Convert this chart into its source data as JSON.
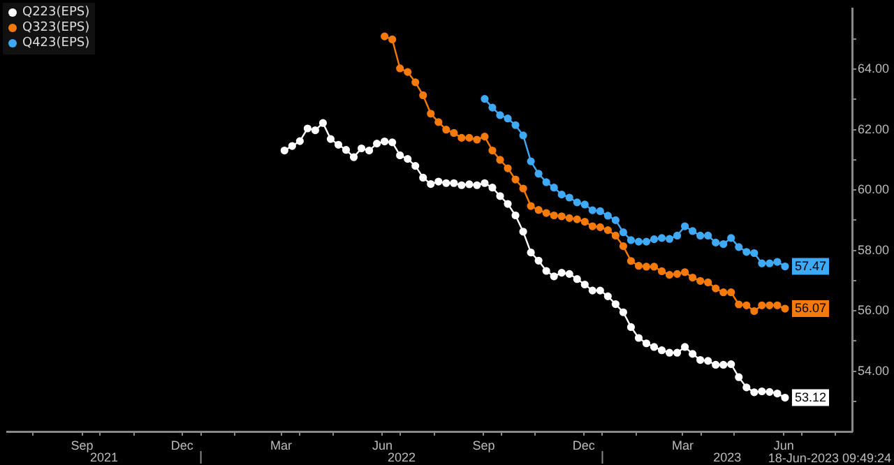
{
  "chart_data": {
    "type": "line",
    "marker": "circle",
    "legend": "top left",
    "x": [
      "2022-03-18",
      "2022-03-25",
      "2022-04-01",
      "2022-04-08",
      "2022-04-15",
      "2022-04-22",
      "2022-04-29",
      "2022-05-06",
      "2022-05-13",
      "2022-05-20",
      "2022-05-27",
      "2022-06-03",
      "2022-06-10",
      "2022-06-17",
      "2022-06-24",
      "2022-07-01",
      "2022-07-08",
      "2022-07-15",
      "2022-07-22",
      "2022-07-29",
      "2022-08-05",
      "2022-08-12",
      "2022-08-19",
      "2022-08-26",
      "2022-09-02",
      "2022-09-09",
      "2022-09-16",
      "2022-09-23",
      "2022-09-30",
      "2022-10-07",
      "2022-10-14",
      "2022-10-21",
      "2022-10-28",
      "2022-11-04",
      "2022-11-11",
      "2022-11-18",
      "2022-11-25",
      "2022-12-02",
      "2022-12-09",
      "2022-12-16",
      "2022-12-23",
      "2022-12-30",
      "2023-01-06",
      "2023-01-13",
      "2023-01-20",
      "2023-01-27",
      "2023-02-03",
      "2023-02-10",
      "2023-02-17",
      "2023-02-24",
      "2023-03-03",
      "2023-03-10",
      "2023-03-17",
      "2023-03-24",
      "2023-03-31",
      "2023-04-07",
      "2023-04-14",
      "2023-04-21",
      "2023-04-28",
      "2023-05-05",
      "2023-05-12",
      "2023-05-19",
      "2023-05-26",
      "2023-06-02",
      "2023-06-09",
      "2023-06-16"
    ],
    "series": [
      {
        "name": "Q223(EPS)",
        "color": "#ffffff",
        "values": [
          61.31,
          61.46,
          61.62,
          62.04,
          61.98,
          62.22,
          61.69,
          61.5,
          61.33,
          61.09,
          61.38,
          61.31,
          61.54,
          61.61,
          61.58,
          61.15,
          61.03,
          60.8,
          60.41,
          60.2,
          60.28,
          60.23,
          60.23,
          60.16,
          60.19,
          60.16,
          60.23,
          60.08,
          59.8,
          59.54,
          59.16,
          58.62,
          57.93,
          57.66,
          57.32,
          57.14,
          57.26,
          57.22,
          57.05,
          56.87,
          56.67,
          56.67,
          56.48,
          56.22,
          55.95,
          55.46,
          55.1,
          54.92,
          54.8,
          54.69,
          54.61,
          54.61,
          54.8,
          54.57,
          54.37,
          54.34,
          54.21,
          54.21,
          54.23,
          53.8,
          53.46,
          53.3,
          53.33,
          53.31,
          53.26,
          53.12
        ],
        "value_labels": [
          null,
          null,
          null,
          null,
          null,
          null,
          null,
          null,
          null,
          null,
          null,
          null,
          null,
          null,
          null,
          null,
          null,
          null,
          null,
          null,
          null,
          null,
          null,
          null,
          null,
          null,
          null,
          null,
          null,
          null,
          null,
          null,
          null,
          null,
          null,
          null,
          null,
          null,
          null,
          null,
          null,
          null,
          null,
          null,
          null,
          null,
          null,
          null,
          null,
          null,
          null,
          null,
          null,
          null,
          null,
          null,
          null,
          null,
          null,
          null,
          null,
          null,
          null,
          null,
          null,
          "53.12"
        ]
      },
      {
        "name": "Q323(EPS)",
        "color": "#f57a0a",
        "values": [
          null,
          null,
          null,
          null,
          null,
          null,
          null,
          null,
          null,
          null,
          null,
          null,
          null,
          65.09,
          64.99,
          64.03,
          63.91,
          63.57,
          63.14,
          62.53,
          62.25,
          62.0,
          61.89,
          61.73,
          61.73,
          61.67,
          61.77,
          61.31,
          61.0,
          60.72,
          60.35,
          60.05,
          59.47,
          59.34,
          59.24,
          59.16,
          59.13,
          59.07,
          59.03,
          58.95,
          58.8,
          58.77,
          58.67,
          58.49,
          58.14,
          57.65,
          57.49,
          57.46,
          57.46,
          57.31,
          57.19,
          57.22,
          57.28,
          57.1,
          56.99,
          56.94,
          56.74,
          56.61,
          56.61,
          56.21,
          56.18,
          55.99,
          56.18,
          56.18,
          56.18,
          56.07
        ],
        "value_labels": [
          null,
          null,
          null,
          null,
          null,
          null,
          null,
          null,
          null,
          null,
          null,
          null,
          null,
          null,
          null,
          null,
          null,
          null,
          null,
          null,
          null,
          null,
          null,
          null,
          null,
          null,
          null,
          null,
          null,
          null,
          null,
          null,
          null,
          null,
          null,
          null,
          null,
          null,
          null,
          null,
          null,
          null,
          null,
          null,
          null,
          null,
          null,
          null,
          null,
          null,
          null,
          null,
          null,
          null,
          null,
          null,
          null,
          null,
          null,
          null,
          null,
          null,
          null,
          null,
          null,
          "56.07"
        ]
      },
      {
        "name": "Q423(EPS)",
        "color": "#3fa9f5",
        "values": [
          null,
          null,
          null,
          null,
          null,
          null,
          null,
          null,
          null,
          null,
          null,
          null,
          null,
          null,
          null,
          null,
          null,
          null,
          null,
          null,
          null,
          null,
          null,
          null,
          null,
          null,
          63.02,
          62.73,
          62.48,
          62.37,
          62.15,
          61.81,
          60.95,
          60.54,
          60.26,
          60.08,
          59.85,
          59.75,
          59.59,
          59.52,
          59.33,
          59.3,
          59.15,
          59.0,
          58.6,
          58.34,
          58.29,
          58.29,
          58.37,
          58.41,
          58.38,
          58.49,
          58.8,
          58.64,
          58.49,
          58.49,
          58.26,
          58.21,
          58.41,
          58.11,
          57.95,
          57.91,
          57.57,
          57.57,
          57.62,
          57.47
        ],
        "value_labels": [
          null,
          null,
          null,
          null,
          null,
          null,
          null,
          null,
          null,
          null,
          null,
          null,
          null,
          null,
          null,
          null,
          null,
          null,
          null,
          null,
          null,
          null,
          null,
          null,
          null,
          null,
          null,
          null,
          null,
          null,
          null,
          null,
          null,
          null,
          null,
          null,
          null,
          null,
          null,
          null,
          null,
          null,
          null,
          null,
          null,
          null,
          null,
          null,
          null,
          null,
          null,
          null,
          null,
          null,
          null,
          null,
          null,
          null,
          null,
          null,
          null,
          null,
          null,
          null,
          null,
          "57.47"
        ]
      }
    ],
    "ylim": [
      52,
      66
    ],
    "yticks": [
      {
        "value": 53,
        "label": null
      },
      {
        "value": 54,
        "label": "54.00"
      },
      {
        "value": 55,
        "label": null
      },
      {
        "value": 56,
        "label": "56.00"
      },
      {
        "value": 57,
        "label": null
      },
      {
        "value": 58,
        "label": "58.00"
      },
      {
        "value": 59,
        "label": null
      },
      {
        "value": 60,
        "label": "60.00"
      },
      {
        "value": 61,
        "label": null
      },
      {
        "value": 62,
        "label": "62.00"
      },
      {
        "value": 63,
        "label": null
      },
      {
        "value": 64,
        "label": "64.00"
      },
      {
        "value": 65,
        "label": null
      }
    ],
    "xlim": [
      "2021-07-09",
      "2023-08-16"
    ],
    "xticks": [
      {
        "value": "2021-08-01",
        "label": null
      },
      {
        "value": "2021-09-15",
        "label": "Sep"
      },
      {
        "value": "2021-10-01",
        "label": null
      },
      {
        "value": "2021-11-01",
        "label": null
      },
      {
        "value": "2021-12-15",
        "label": "Dec"
      },
      {
        "value": "2022-01-01",
        "label": null
      },
      {
        "value": "2022-02-01",
        "label": null
      },
      {
        "value": "2022-03-15",
        "label": "Mar"
      },
      {
        "value": "2022-04-01",
        "label": null
      },
      {
        "value": "2022-05-01",
        "label": null
      },
      {
        "value": "2022-06-15",
        "label": "Jun"
      },
      {
        "value": "2022-07-01",
        "label": null
      },
      {
        "value": "2022-08-01",
        "label": null
      },
      {
        "value": "2022-09-15",
        "label": "Sep"
      },
      {
        "value": "2022-10-01",
        "label": null
      },
      {
        "value": "2022-11-01",
        "label": null
      },
      {
        "value": "2022-12-15",
        "label": "Dec"
      },
      {
        "value": "2023-01-01",
        "label": null
      },
      {
        "value": "2023-02-01",
        "label": null
      },
      {
        "value": "2023-03-15",
        "label": "Mar"
      },
      {
        "value": "2023-04-01",
        "label": null
      },
      {
        "value": "2023-05-01",
        "label": null
      },
      {
        "value": "2023-06-15",
        "label": "Jun"
      },
      {
        "value": "2023-07-01",
        "label": null
      },
      {
        "value": "2023-08-01",
        "label": null
      }
    ],
    "annotations": [
      "2021",
      "2022",
      "2023",
      "18-Jun-2023 09:49:24"
    ]
  }
}
